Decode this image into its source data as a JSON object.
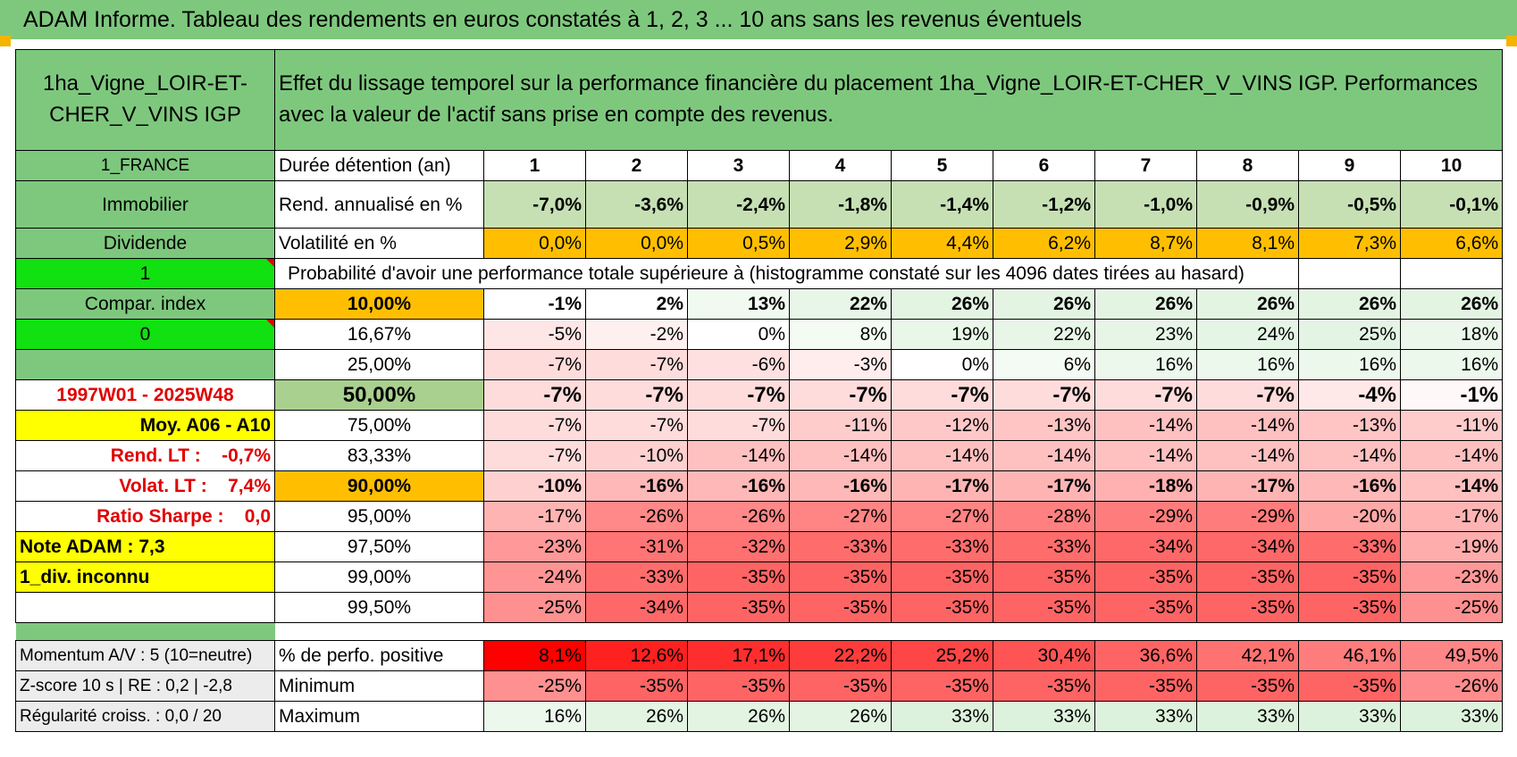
{
  "title": "ADAM Informe. Tableau des rendements en euros constatés à 1, 2, 3 ... 10 ans sans les revenus éventuels",
  "header": {
    "asset_name": "1ha_Vigne_LOIR-ET-CHER_V_VINS IGP",
    "description": "Effet du lissage temporel sur la performance financière du placement 1ha_Vigne_LOIR-ET-CHER_V_VINS IGP. Performances avec la valeur de l'actif sans prise en compte des revenus."
  },
  "sidebar": {
    "country": "1_FRANCE",
    "category": "Immobilier",
    "type": "Dividende",
    "flag1": "1",
    "compar_index": "Compar. index",
    "flag0": "0",
    "blank": "",
    "period": "1997W01 - 2025W48",
    "moy": "Moy. A06 - A10",
    "rend_lt": "Rend. LT :    -0,7%",
    "volat_lt": "Volat. LT :    7,4%",
    "sharpe": "Ratio Sharpe :    0,0",
    "note": "Note ADAM : 7,3",
    "div": "1_div. inconnu"
  },
  "durations": {
    "label": "Durée détention (an)",
    "values": [
      "1",
      "2",
      "3",
      "4",
      "5",
      "6",
      "7",
      "8",
      "9",
      "10"
    ]
  },
  "rend": {
    "label": "Rend. annualisé en %",
    "values": [
      "-7,0%",
      "-3,6%",
      "-2,4%",
      "-1,8%",
      "-1,4%",
      "-1,2%",
      "-1,0%",
      "-0,9%",
      "-0,5%",
      "-0,1%"
    ],
    "color": "#c6e0b4"
  },
  "vol": {
    "label": "Volatilité en %",
    "values": [
      "0,0%",
      "0,0%",
      "0,5%",
      "2,9%",
      "4,4%",
      "6,2%",
      "8,7%",
      "8,1%",
      "7,3%",
      "6,6%"
    ],
    "color": "#ffbf00"
  },
  "proba_title": "Probabilité d'avoir une performance totale supérieure à (histogramme constaté sur les 4096 dates tirées au hasard)",
  "pct_rows": [
    {
      "p": "10,00%",
      "bold": true,
      "values": [
        "-1%",
        "2%",
        "13%",
        "22%",
        "26%",
        "26%",
        "26%",
        "26%",
        "26%",
        "26%"
      ],
      "colors": [
        "#ffffff",
        "#ffffff",
        "#f0faf0",
        "#e7f6e7",
        "#e3f4e3",
        "#e3f4e3",
        "#e3f4e3",
        "#e3f4e3",
        "#e3f4e3",
        "#e3f4e3"
      ]
    },
    {
      "p": "16,67%",
      "bold": false,
      "values": [
        "-5%",
        "-2%",
        "0%",
        "8%",
        "19%",
        "22%",
        "23%",
        "24%",
        "25%",
        "18%"
      ],
      "colors": [
        "#ffe6e6",
        "#fff0f0",
        "#ffffff",
        "#f3fbf3",
        "#e9f7e9",
        "#e7f6e7",
        "#e6f5e6",
        "#e5f5e5",
        "#e4f4e4",
        "#eaf7ea"
      ]
    },
    {
      "p": "25,00%",
      "bold": false,
      "values": [
        "-7%",
        "-7%",
        "-6%",
        "-3%",
        "0%",
        "6%",
        "16%",
        "16%",
        "16%",
        "16%"
      ],
      "colors": [
        "#ffdcdc",
        "#ffdcdc",
        "#ffe0e0",
        "#ffeded",
        "#ffffff",
        "#f4fbf4",
        "#ecf8ec",
        "#ecf8ec",
        "#ecf8ec",
        "#ecf8ec"
      ]
    },
    {
      "p": "50,00%",
      "bold": true,
      "big": true,
      "values": [
        "-7%",
        "-7%",
        "-7%",
        "-7%",
        "-7%",
        "-7%",
        "-7%",
        "-7%",
        "-4%",
        "-1%"
      ],
      "colors": [
        "#ffdcdc",
        "#ffdcdc",
        "#ffdcdc",
        "#ffdcdc",
        "#ffdcdc",
        "#ffdcdc",
        "#ffdcdc",
        "#ffdcdc",
        "#ffe8e8",
        "#fff8f8"
      ]
    },
    {
      "p": "75,00%",
      "bold": false,
      "values": [
        "-7%",
        "-7%",
        "-7%",
        "-11%",
        "-12%",
        "-13%",
        "-14%",
        "-14%",
        "-13%",
        "-11%"
      ],
      "colors": [
        "#ffdcdc",
        "#ffdcdc",
        "#ffdcdc",
        "#ffcccc",
        "#ffc8c8",
        "#ffc4c4",
        "#ffc0c0",
        "#ffc0c0",
        "#ffc4c4",
        "#ffcccc"
      ]
    },
    {
      "p": "83,33%",
      "bold": false,
      "values": [
        "-7%",
        "-10%",
        "-14%",
        "-14%",
        "-14%",
        "-14%",
        "-14%",
        "-14%",
        "-14%",
        "-14%"
      ],
      "colors": [
        "#ffdcdc",
        "#ffd0d0",
        "#ffc0c0",
        "#ffc0c0",
        "#ffc0c0",
        "#ffc0c0",
        "#ffc0c0",
        "#ffc0c0",
        "#ffc0c0",
        "#ffc0c0"
      ]
    },
    {
      "p": "90,00%",
      "bold": true,
      "values": [
        "-10%",
        "-16%",
        "-16%",
        "-16%",
        "-17%",
        "-17%",
        "-18%",
        "-17%",
        "-16%",
        "-14%"
      ],
      "colors": [
        "#ffd0d0",
        "#ffb8b8",
        "#ffb8b8",
        "#ffb8b8",
        "#ffb4b4",
        "#ffb4b4",
        "#ffb0b0",
        "#ffb4b4",
        "#ffb8b8",
        "#ffc0c0"
      ]
    },
    {
      "p": "95,00%",
      "bold": false,
      "values": [
        "-17%",
        "-26%",
        "-26%",
        "-27%",
        "-27%",
        "-28%",
        "-29%",
        "-29%",
        "-20%",
        "-17%"
      ],
      "colors": [
        "#ffb4b4",
        "#ff8888",
        "#ff8888",
        "#ff8484",
        "#ff8484",
        "#ff8080",
        "#ff7c7c",
        "#ff7c7c",
        "#ffa8a8",
        "#ffb4b4"
      ]
    },
    {
      "p": "97,50%",
      "bold": false,
      "values": [
        "-23%",
        "-31%",
        "-32%",
        "-33%",
        "-33%",
        "-33%",
        "-34%",
        "-34%",
        "-33%",
        "-19%"
      ],
      "colors": [
        "#ff9898",
        "#ff7474",
        "#ff7070",
        "#ff6c6c",
        "#ff6c6c",
        "#ff6c6c",
        "#ff6868",
        "#ff6868",
        "#ff6c6c",
        "#ffacac"
      ]
    },
    {
      "p": "99,00%",
      "bold": false,
      "values": [
        "-24%",
        "-33%",
        "-35%",
        "-35%",
        "-35%",
        "-35%",
        "-35%",
        "-35%",
        "-35%",
        "-23%"
      ],
      "colors": [
        "#ff9494",
        "#ff6c6c",
        "#ff6464",
        "#ff6464",
        "#ff6464",
        "#ff6464",
        "#ff6464",
        "#ff6464",
        "#ff6464",
        "#ff9898"
      ]
    },
    {
      "p": "99,50%",
      "bold": false,
      "values": [
        "-25%",
        "-34%",
        "-35%",
        "-35%",
        "-35%",
        "-35%",
        "-35%",
        "-35%",
        "-35%",
        "-25%"
      ],
      "colors": [
        "#ff9090",
        "#ff6868",
        "#ff6464",
        "#ff6464",
        "#ff6464",
        "#ff6464",
        "#ff6464",
        "#ff6464",
        "#ff6464",
        "#ff9090"
      ]
    }
  ],
  "stats": {
    "momentum": "Momentum A/V : 5 (10=neutre)",
    "zscore": "Z-score 10 s | RE : 0,2 | -2,8",
    "regularite": "Régularité croiss. : 0,0 / 20",
    "pos_label": "% de perfo. positive",
    "pos_values": [
      "8,1%",
      "12,6%",
      "17,1%",
      "22,2%",
      "25,2%",
      "30,4%",
      "36,6%",
      "42,1%",
      "46,1%",
      "49,5%"
    ],
    "pos_colors": [
      "#ff0000",
      "#ff2020",
      "#ff2e2e",
      "#ff3c3c",
      "#ff4646",
      "#ff5454",
      "#ff6464",
      "#ff7272",
      "#ff7c7c",
      "#ff8686"
    ],
    "min_label": "Minimum",
    "min_values": [
      "-25%",
      "-35%",
      "-35%",
      "-35%",
      "-35%",
      "-35%",
      "-35%",
      "-35%",
      "-35%",
      "-26%"
    ],
    "min_colors": [
      "#ff9090",
      "#ff6464",
      "#ff6464",
      "#ff6464",
      "#ff6464",
      "#ff6464",
      "#ff6464",
      "#ff6464",
      "#ff6464",
      "#ff8c8c"
    ],
    "max_label": "Maximum",
    "max_values": [
      "16%",
      "26%",
      "26%",
      "26%",
      "33%",
      "33%",
      "33%",
      "33%",
      "33%",
      "33%"
    ],
    "max_colors": [
      "#ecf8ec",
      "#e3f4e3",
      "#e3f4e3",
      "#e3f4e3",
      "#ddf2dd",
      "#ddf2dd",
      "#ddf2dd",
      "#ddf2dd",
      "#ddf2dd",
      "#ddf2dd"
    ]
  },
  "colors": {
    "title_bg": "#7ec87e",
    "flag_green": "#11e011",
    "highlight_yellow": "#ffff00",
    "orange": "#ffbf00"
  }
}
